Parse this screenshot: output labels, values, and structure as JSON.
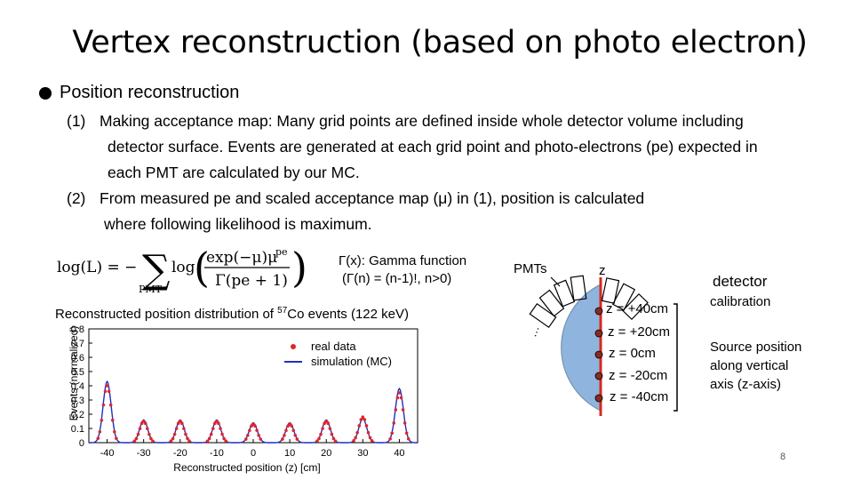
{
  "slide": {
    "title": "Vertex reconstruction (based on photo electron)",
    "bullet": "Position reconstruction",
    "items": [
      {
        "num": "(1)",
        "lines": [
          "Making acceptance map: Many grid points are defined inside whole detector volume including",
          "detector surface. Events are generated at each grid point and photo-electrons (pe) expected in",
          "each PMT are calculated by our MC."
        ]
      },
      {
        "num": "(2)",
        "lines": [
          "From measured pe and scaled acceptance map (μ) in (1),  position is calculated",
          "where following likelihood is maximum."
        ]
      }
    ],
    "gamma_note": [
      "Γ(x): Gamma function",
      "(Γ(n) = (n-1)!, n>0)"
    ],
    "formula": {
      "lhs": "log(L) = −",
      "sub": "PMT",
      "log": "log",
      "num": "exp(−μ)μ",
      "num_sup": "pe",
      "den": "Γ(pe + 1)"
    },
    "caption_pre": "Reconstructed position distribution of ",
    "caption_sup": "57",
    "caption_post": "Co events (122 keV)",
    "page_number": "8"
  },
  "diagram": {
    "pmts_label": "PMTs",
    "z_label": "z",
    "dots_label": "…",
    "positions": [
      "z = +40cm",
      "z = +20cm",
      "z = 0cm",
      "z = -20cm",
      "z = -40cm"
    ],
    "detector_label": "detector",
    "calibration_label": "calibration",
    "source_text": [
      "Source position",
      "along vertical",
      "axis (z-axis)"
    ],
    "sphere_color": "#8fb4dd",
    "axis_color": "#d42a20"
  },
  "chart_data": {
    "type": "line",
    "title": "",
    "xlabel": "Reconstructed position (z) [cm]",
    "ylabel": "Events (normalized)",
    "xlim": [
      -45,
      45
    ],
    "ylim": [
      0,
      0.8
    ],
    "xticks": [
      -40,
      -30,
      -20,
      -10,
      0,
      10,
      20,
      30,
      40
    ],
    "yticks": [
      0,
      0.1,
      0.2,
      0.3,
      0.4,
      0.5,
      0.6,
      0.7,
      0.8
    ],
    "legend_position": "top-right",
    "series": [
      {
        "name": "real data",
        "style": "points",
        "color": "#e0262a",
        "peaks": [
          {
            "center": -40,
            "height": 0.4
          },
          {
            "center": -30,
            "height": 0.15
          },
          {
            "center": -20,
            "height": 0.15
          },
          {
            "center": -10,
            "height": 0.15
          },
          {
            "center": 0,
            "height": 0.13
          },
          {
            "center": 10,
            "height": 0.13
          },
          {
            "center": 20,
            "height": 0.15
          },
          {
            "center": 30,
            "height": 0.18
          },
          {
            "center": 40,
            "height": 0.35
          }
        ]
      },
      {
        "name": "simulation (MC)",
        "style": "line",
        "color": "#1f2fbf",
        "peaks": [
          {
            "center": -40,
            "height": 0.43
          },
          {
            "center": -30,
            "height": 0.16
          },
          {
            "center": -20,
            "height": 0.16
          },
          {
            "center": -10,
            "height": 0.16
          },
          {
            "center": 0,
            "height": 0.14
          },
          {
            "center": 10,
            "height": 0.14
          },
          {
            "center": 20,
            "height": 0.16
          },
          {
            "center": 30,
            "height": 0.17
          },
          {
            "center": 40,
            "height": 0.38
          }
        ]
      }
    ]
  }
}
